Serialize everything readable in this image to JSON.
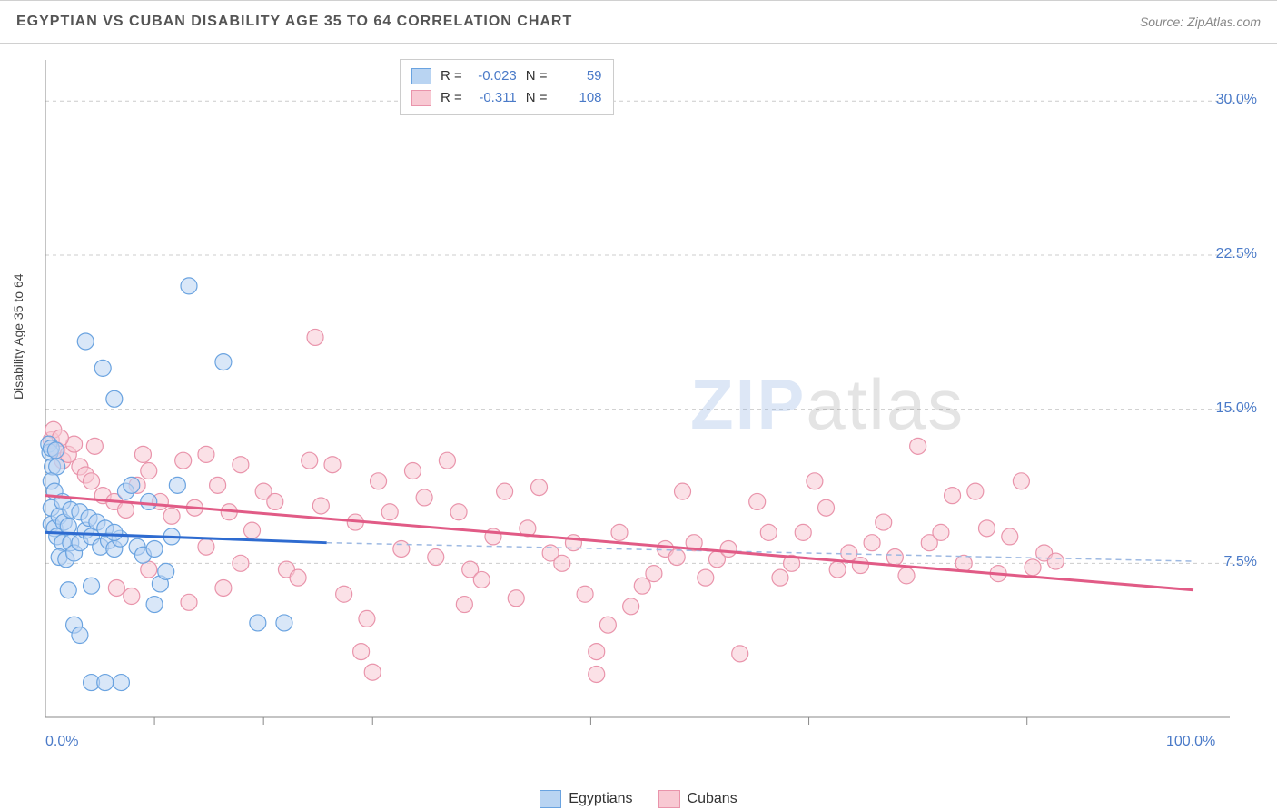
{
  "header": {
    "title": "EGYPTIAN VS CUBAN DISABILITY AGE 35 TO 64 CORRELATION CHART",
    "source": "Source: ZipAtlas.com"
  },
  "watermark": {
    "zip": "ZIP",
    "atlas": "atlas"
  },
  "colors": {
    "series1_fill": "#b9d4f2",
    "series1_stroke": "#6aa3e0",
    "series2_fill": "#f8c9d3",
    "series2_stroke": "#e994ab",
    "axis_text": "#4a7ac8",
    "grid_dash": "#cccccc",
    "axis_line": "#888888",
    "title_color": "#555555",
    "trend1": "#2e6bd0",
    "trend1_dash": "#9db9e2",
    "trend2": "#e15b86"
  },
  "chart": {
    "type": "scatter",
    "ylabel": "Disability Age 35 to 64",
    "xlim": [
      0,
      100
    ],
    "ylim": [
      0,
      32
    ],
    "x_axis_labels": {
      "min": "0.0%",
      "max": "100.0%"
    },
    "y_ticks": [
      {
        "v": 7.5,
        "label": "7.5%"
      },
      {
        "v": 15.0,
        "label": "15.0%"
      },
      {
        "v": 22.5,
        "label": "22.5%"
      },
      {
        "v": 30.0,
        "label": "30.0%"
      }
    ],
    "x_small_ticks": [
      9.5,
      19,
      28.5,
      47.5,
      66.5,
      85.5
    ],
    "marker_radius": 9,
    "marker_opacity": 0.55,
    "trend_lines": {
      "series1": {
        "x1": 0,
        "y1": 9.0,
        "x2": 24.5,
        "y2": 8.5,
        "ext_x2": 100,
        "ext_y2": 7.6
      },
      "series2": {
        "x1": 0,
        "y1": 10.8,
        "x2": 100,
        "y2": 6.2
      }
    },
    "stats": {
      "series1": {
        "R_label": "R =",
        "R": "-0.023",
        "N_label": "N =",
        "N": "59"
      },
      "series2": {
        "R_label": "R =",
        "R": "-0.311",
        "N_label": "N =",
        "N": "108"
      }
    },
    "legend_bottom": {
      "series1": "Egyptians",
      "series2": "Cubans"
    },
    "series1_points": [
      [
        0.3,
        13.3
      ],
      [
        0.4,
        12.9
      ],
      [
        0.6,
        12.2
      ],
      [
        0.5,
        13.1
      ],
      [
        0.9,
        13.0
      ],
      [
        1.0,
        12.2
      ],
      [
        0.5,
        10.2
      ],
      [
        0.5,
        9.4
      ],
      [
        0.8,
        9.2
      ],
      [
        1.2,
        9.8
      ],
      [
        1.6,
        9.5
      ],
      [
        1.0,
        8.8
      ],
      [
        1.5,
        8.5
      ],
      [
        2.0,
        9.3
      ],
      [
        2.2,
        8.5
      ],
      [
        1.2,
        7.8
      ],
      [
        1.8,
        7.7
      ],
      [
        2.5,
        8.0
      ],
      [
        3.0,
        8.5
      ],
      [
        3.5,
        9.1
      ],
      [
        4.0,
        8.8
      ],
      [
        4.8,
        8.3
      ],
      [
        5.5,
        8.6
      ],
      [
        6.0,
        8.2
      ],
      [
        6.5,
        8.7
      ],
      [
        7.0,
        11.0
      ],
      [
        7.5,
        11.3
      ],
      [
        8.0,
        8.3
      ],
      [
        8.5,
        7.9
      ],
      [
        9.0,
        10.5
      ],
      [
        9.5,
        8.2
      ],
      [
        10.0,
        6.5
      ],
      [
        10.5,
        7.1
      ],
      [
        11.0,
        8.8
      ],
      [
        11.5,
        11.3
      ],
      [
        6.0,
        15.5
      ],
      [
        5.0,
        17.0
      ],
      [
        3.5,
        18.3
      ],
      [
        12.5,
        21.0
      ],
      [
        15.5,
        17.3
      ],
      [
        2.0,
        6.2
      ],
      [
        4.0,
        6.4
      ],
      [
        2.5,
        4.5
      ],
      [
        3.0,
        4.0
      ],
      [
        4.0,
        1.7
      ],
      [
        5.2,
        1.7
      ],
      [
        6.6,
        1.7
      ],
      [
        0.5,
        11.5
      ],
      [
        0.8,
        11.0
      ],
      [
        1.5,
        10.5
      ],
      [
        2.2,
        10.1
      ],
      [
        3.0,
        10.0
      ],
      [
        3.8,
        9.7
      ],
      [
        4.5,
        9.5
      ],
      [
        5.2,
        9.2
      ],
      [
        6.0,
        9.0
      ],
      [
        18.5,
        4.6
      ],
      [
        20.8,
        4.6
      ],
      [
        9.5,
        5.5
      ]
    ],
    "series2_points": [
      [
        0.5,
        13.5
      ],
      [
        1.0,
        13.0
      ],
      [
        1.5,
        12.5
      ],
      [
        2.0,
        12.8
      ],
      [
        2.5,
        13.3
      ],
      [
        3.0,
        12.2
      ],
      [
        3.5,
        11.8
      ],
      [
        4.0,
        11.5
      ],
      [
        5.0,
        10.8
      ],
      [
        6.0,
        10.5
      ],
      [
        7.0,
        10.1
      ],
      [
        8.0,
        11.3
      ],
      [
        8.5,
        12.8
      ],
      [
        9.0,
        12.0
      ],
      [
        10.0,
        10.5
      ],
      [
        11.0,
        9.8
      ],
      [
        12.0,
        12.5
      ],
      [
        13.0,
        10.2
      ],
      [
        14.0,
        12.8
      ],
      [
        15.0,
        11.3
      ],
      [
        16.0,
        10.0
      ],
      [
        17.0,
        7.5
      ],
      [
        18.0,
        9.1
      ],
      [
        19.0,
        11.0
      ],
      [
        20.0,
        10.5
      ],
      [
        21.0,
        7.2
      ],
      [
        22.0,
        6.8
      ],
      [
        23.0,
        12.5
      ],
      [
        24.0,
        10.3
      ],
      [
        25.0,
        12.3
      ],
      [
        26.0,
        6.0
      ],
      [
        27.0,
        9.5
      ],
      [
        28.0,
        4.8
      ],
      [
        28.5,
        2.2
      ],
      [
        27.5,
        3.2
      ],
      [
        29.0,
        11.5
      ],
      [
        30.0,
        10.0
      ],
      [
        31.0,
        8.2
      ],
      [
        32.0,
        12.0
      ],
      [
        33.0,
        10.7
      ],
      [
        34.0,
        7.8
      ],
      [
        35.0,
        12.5
      ],
      [
        36.0,
        10.0
      ],
      [
        37.0,
        7.2
      ],
      [
        38.0,
        6.7
      ],
      [
        39.0,
        8.8
      ],
      [
        40.0,
        11.0
      ],
      [
        41.0,
        5.8
      ],
      [
        42.0,
        9.2
      ],
      [
        43.0,
        11.2
      ],
      [
        44.0,
        8.0
      ],
      [
        45.0,
        7.5
      ],
      [
        46.0,
        8.5
      ],
      [
        47.0,
        6.0
      ],
      [
        48.0,
        3.2
      ],
      [
        49.0,
        4.5
      ],
      [
        50.0,
        9.0
      ],
      [
        51.0,
        5.4
      ],
      [
        52.0,
        6.4
      ],
      [
        53.0,
        7.0
      ],
      [
        54.0,
        8.2
      ],
      [
        55.0,
        7.8
      ],
      [
        55.5,
        11.0
      ],
      [
        56.5,
        8.5
      ],
      [
        57.5,
        6.8
      ],
      [
        58.5,
        7.7
      ],
      [
        59.5,
        8.2
      ],
      [
        60.5,
        3.1
      ],
      [
        62.0,
        10.5
      ],
      [
        63.0,
        9.0
      ],
      [
        64.0,
        6.8
      ],
      [
        65.0,
        7.5
      ],
      [
        66.0,
        9.0
      ],
      [
        67.0,
        11.5
      ],
      [
        68.0,
        10.2
      ],
      [
        69.0,
        7.2
      ],
      [
        70.0,
        8.0
      ],
      [
        71.0,
        7.4
      ],
      [
        72.0,
        8.5
      ],
      [
        73.0,
        9.5
      ],
      [
        74.0,
        7.8
      ],
      [
        75.0,
        6.9
      ],
      [
        76.0,
        13.2
      ],
      [
        77.0,
        8.5
      ],
      [
        78.0,
        9.0
      ],
      [
        79.0,
        10.8
      ],
      [
        80.0,
        7.5
      ],
      [
        81.0,
        11.0
      ],
      [
        82.0,
        9.2
      ],
      [
        83.0,
        7.0
      ],
      [
        84.0,
        8.8
      ],
      [
        85.0,
        11.5
      ],
      [
        86.0,
        7.3
      ],
      [
        87.0,
        8.0
      ],
      [
        88.0,
        7.6
      ],
      [
        23.5,
        18.5
      ],
      [
        0.7,
        14.0
      ],
      [
        1.3,
        13.6
      ],
      [
        4.3,
        13.2
      ],
      [
        6.2,
        6.3
      ],
      [
        7.5,
        5.9
      ],
      [
        9.0,
        7.2
      ],
      [
        12.5,
        5.6
      ],
      [
        14.0,
        8.3
      ],
      [
        15.5,
        6.3
      ],
      [
        17.0,
        12.3
      ],
      [
        36.5,
        5.5
      ],
      [
        48.0,
        2.1
      ]
    ]
  }
}
